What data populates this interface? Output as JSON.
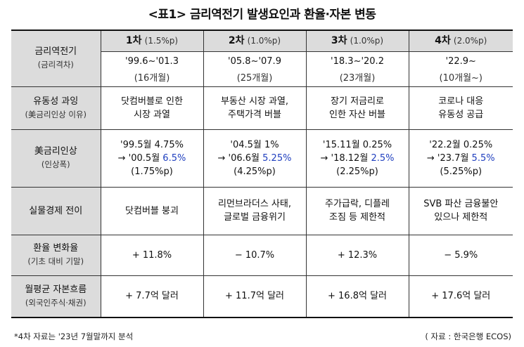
{
  "title": "<표1> 금리역전기 발생요인과 환율·자본 변동",
  "header": {
    "label_main": "금리역전기",
    "label_sub": "(금리격차)",
    "phases": [
      {
        "name": "1차",
        "pct": "(1.5%p)",
        "period": "'99.6~'01.3",
        "months": "(16개월)"
      },
      {
        "name": "2차",
        "pct": "(1.0%p)",
        "period": "'05.8~'07.9",
        "months": "(25개월)"
      },
      {
        "name": "3차",
        "pct": "(1.0%p)",
        "period": "'18.3~'20.2",
        "months": "(23개월)"
      },
      {
        "name": "4차",
        "pct": "(2.0%p)",
        "period": "'22.9~",
        "months": "(10개월~)"
      }
    ]
  },
  "rows": {
    "liquidity": {
      "label_main": "유동성 과잉",
      "label_sub": "(美금리인상 이유)",
      "cells": [
        {
          "line1": "닷컴버블로 인한",
          "line2": "시장 과열"
        },
        {
          "line1": "부동산 시장 과열,",
          "line2": "주택가격 버블"
        },
        {
          "line1": "장기 저금리로",
          "line2": "인한 자산 버블"
        },
        {
          "line1": "코로나 대응",
          "line2": "유동성 공급"
        }
      ]
    },
    "rate_hike": {
      "label_main": "美금리인상",
      "label_sub": "(인상폭)",
      "cells": [
        {
          "line1": "'99.5월 4.75%",
          "line2_pre": "→ '00.5월 ",
          "line2_val": "6.5%",
          "line3": "(1.75%p)"
        },
        {
          "line1": "'04.5월 1%",
          "line2_pre": "→ '06.6월 ",
          "line2_val": "5.25%",
          "line3": "(4.25%p)"
        },
        {
          "line1": "'15.11월 0.25%",
          "line2_pre": "→ '18.12월 ",
          "line2_val": "2.5%",
          "line3": "(2.25%p)"
        },
        {
          "line1": "'22.2월 0.25%",
          "line2_pre": "→ '23.7월 ",
          "line2_val": "5.5%",
          "line3": "(5.25%p)"
        }
      ]
    },
    "real_economy": {
      "label_main": "실물경제 전이",
      "cells": [
        {
          "line1": "닷컴버블 붕괴",
          "line2": ""
        },
        {
          "line1": "리먼브라더스 사태,",
          "line2": "글로벌 금융위기"
        },
        {
          "line1": "주가급락, 디플레",
          "line2": "조짐 등 제한적"
        },
        {
          "line1": "SVB 파산 금융불안",
          "line2": "있으나 제한적"
        }
      ]
    },
    "fx": {
      "label_main": "환율 변화율",
      "label_sub": "(기초 대비 기말)",
      "cells": [
        "+ 11.8%",
        "− 10.7%",
        "+ 12.3%",
        "− 5.9%"
      ]
    },
    "capital": {
      "label_main": "월평균 자본흐름",
      "label_sub": "(외국인주식·채권)",
      "cells": [
        "+ 7.7억 달러",
        "+ 11.7억 달러",
        "+ 16.8억 달러",
        "+ 17.6억 달러"
      ]
    }
  },
  "footer": {
    "note": "*4차 자료는 '23년 7월말까지 분석",
    "source": "( 자료 : 한국은행 ECOS)"
  },
  "colors": {
    "header_bg": "#dcdcdc",
    "highlight": "#1f3fbf"
  }
}
